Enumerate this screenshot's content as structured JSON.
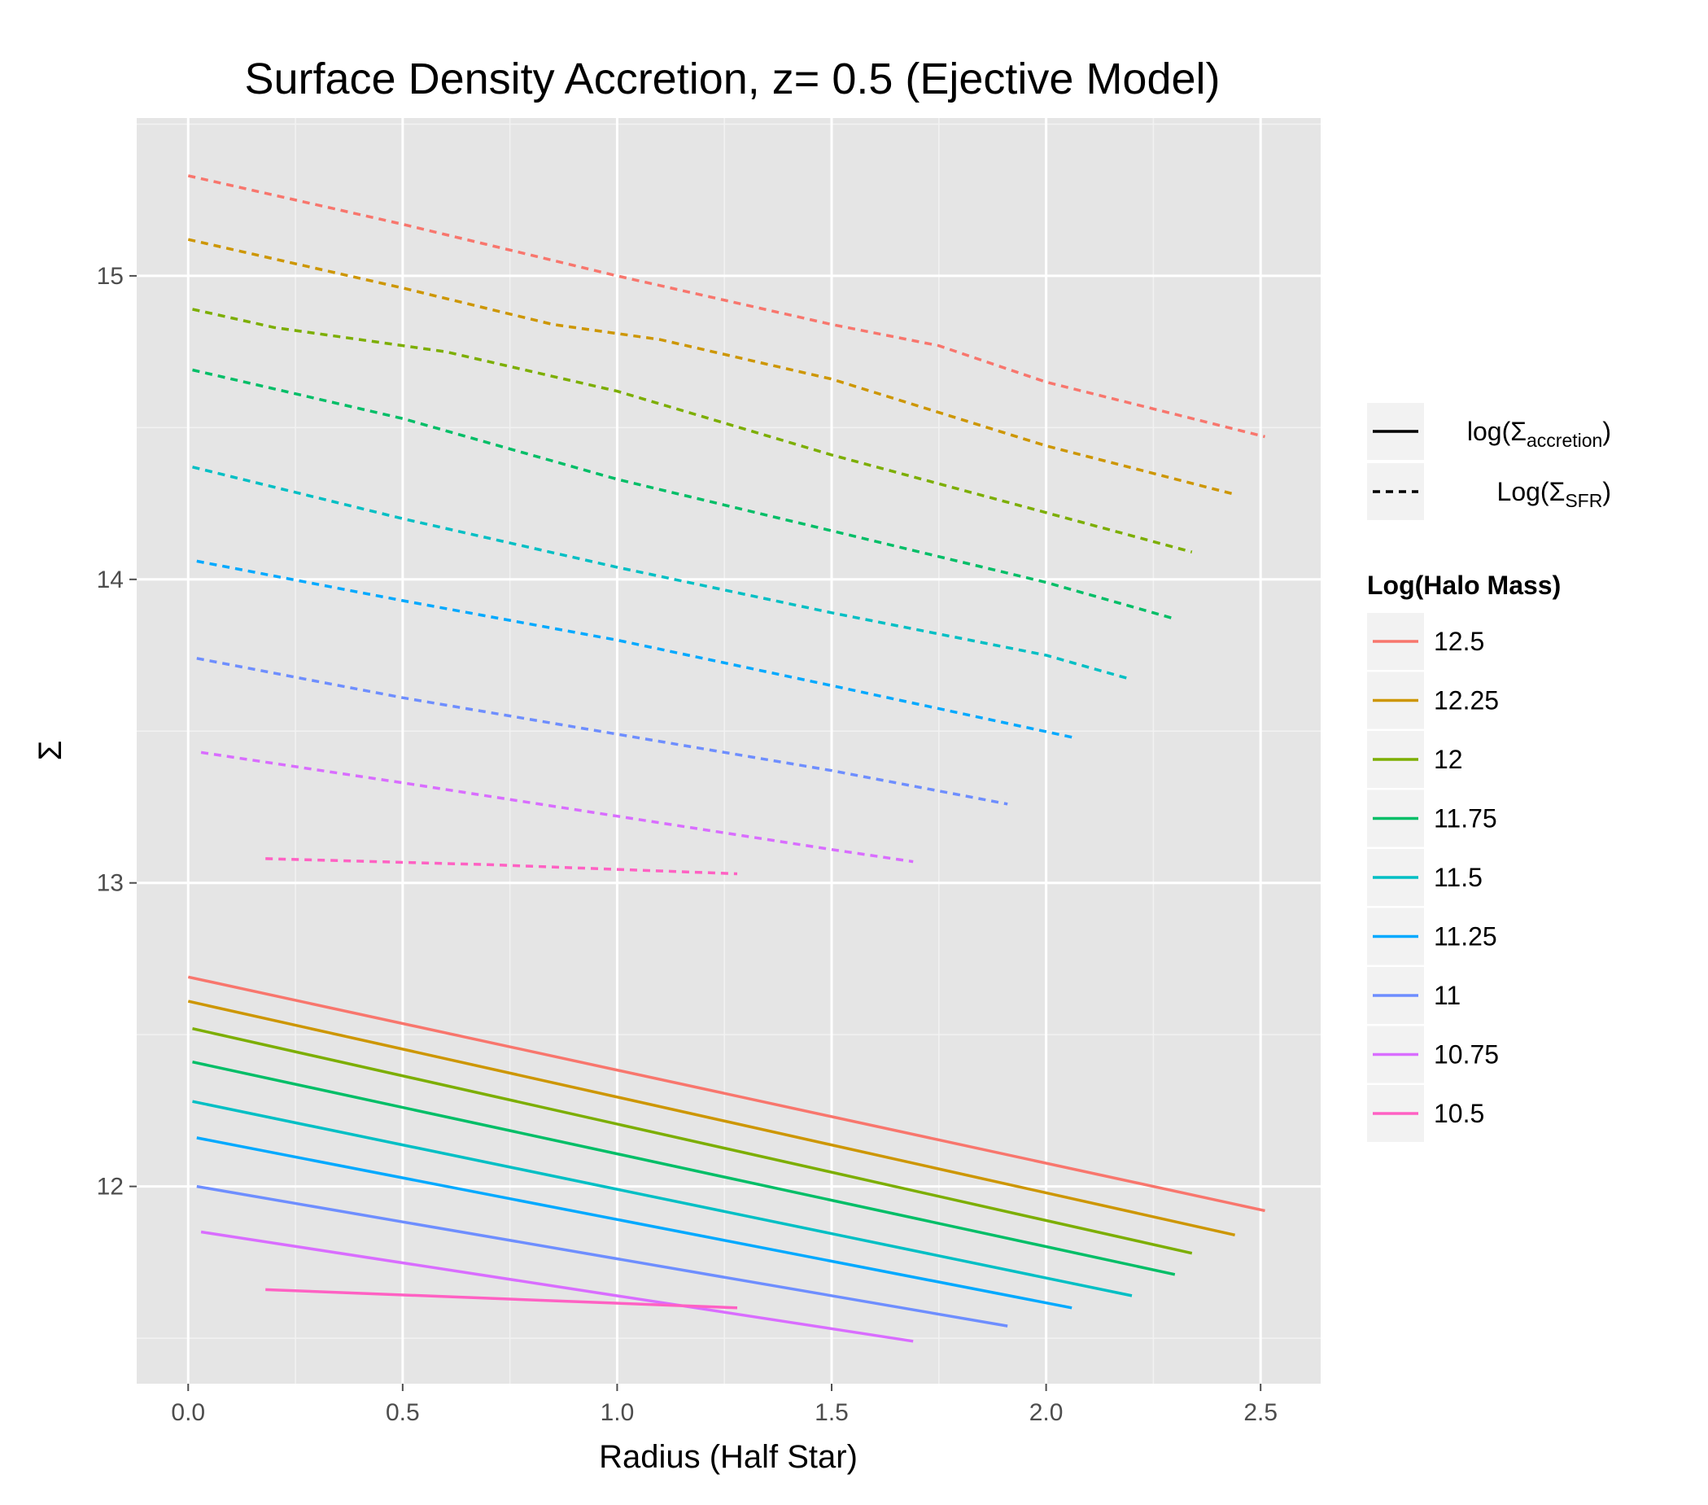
{
  "chart_data": {
    "type": "line",
    "title": "Surface Density Accretion, z= 0.5 (Ejective Model)",
    "xlabel": "Radius (Half Star)",
    "ylabel": "Σ",
    "xlim": [
      -0.12,
      2.64
    ],
    "ylim": [
      11.35,
      15.52
    ],
    "xticks": [
      0.0,
      0.5,
      1.0,
      1.5,
      2.0,
      2.5
    ],
    "xtick_labels": [
      "0.0",
      "0.5",
      "1.0",
      "1.5",
      "2.0",
      "2.5"
    ],
    "yticks": [
      12,
      13,
      14,
      15
    ],
    "ytick_labels": [
      "12",
      "13",
      "14",
      "15"
    ],
    "grid": true,
    "background": "#e5e5e5",
    "legend_position": "right",
    "linetype_legend": [
      {
        "linetype": "solid",
        "label_prefix": "log(Σ",
        "label_sub": "accretion",
        "label_suffix": ")"
      },
      {
        "linetype": "dashed",
        "label_prefix": "Log(Σ",
        "label_sub": "SFR",
        "label_suffix": ")"
      }
    ],
    "color_legend_title": "Log(Halo Mass)",
    "series": [
      {
        "name": "12.5",
        "color": "#F8766D",
        "accretion": [
          [
            0.0,
            12.69
          ],
          [
            2.51,
            11.92
          ]
        ],
        "sfr": [
          [
            0.0,
            15.33
          ],
          [
            0.5,
            15.17
          ],
          [
            1.0,
            15.0
          ],
          [
            1.5,
            14.84
          ],
          [
            1.75,
            14.77
          ],
          [
            2.0,
            14.65
          ],
          [
            2.51,
            14.47
          ]
        ]
      },
      {
        "name": "12.25",
        "color": "#CD9600",
        "accretion": [
          [
            0.0,
            12.61
          ],
          [
            2.44,
            11.84
          ]
        ],
        "sfr": [
          [
            0.0,
            15.12
          ],
          [
            0.5,
            14.96
          ],
          [
            0.85,
            14.84
          ],
          [
            1.1,
            14.79
          ],
          [
            1.5,
            14.66
          ],
          [
            2.0,
            14.44
          ],
          [
            2.44,
            14.28
          ]
        ]
      },
      {
        "name": "12",
        "color": "#7CAE00",
        "accretion": [
          [
            0.01,
            12.52
          ],
          [
            2.34,
            11.78
          ]
        ],
        "sfr": [
          [
            0.01,
            14.89
          ],
          [
            0.2,
            14.83
          ],
          [
            0.6,
            14.75
          ],
          [
            1.0,
            14.62
          ],
          [
            1.5,
            14.41
          ],
          [
            2.0,
            14.22
          ],
          [
            2.34,
            14.09
          ]
        ]
      },
      {
        "name": "11.75",
        "color": "#00BE67",
        "accretion": [
          [
            0.01,
            12.41
          ],
          [
            2.3,
            11.71
          ]
        ],
        "sfr": [
          [
            0.01,
            14.69
          ],
          [
            0.5,
            14.53
          ],
          [
            1.0,
            14.33
          ],
          [
            1.5,
            14.16
          ],
          [
            2.0,
            13.99
          ],
          [
            2.3,
            13.87
          ]
        ]
      },
      {
        "name": "11.5",
        "color": "#00BFC4",
        "accretion": [
          [
            0.01,
            12.28
          ],
          [
            2.2,
            11.64
          ]
        ],
        "sfr": [
          [
            0.01,
            14.37
          ],
          [
            0.5,
            14.2
          ],
          [
            1.0,
            14.04
          ],
          [
            1.5,
            13.89
          ],
          [
            2.0,
            13.75
          ],
          [
            2.2,
            13.67
          ]
        ]
      },
      {
        "name": "11.25",
        "color": "#00A9FF",
        "accretion": [
          [
            0.02,
            12.16
          ],
          [
            2.06,
            11.6
          ]
        ],
        "sfr": [
          [
            0.02,
            14.06
          ],
          [
            0.5,
            13.93
          ],
          [
            1.0,
            13.8
          ],
          [
            1.5,
            13.65
          ],
          [
            2.06,
            13.48
          ]
        ]
      },
      {
        "name": "11",
        "color": "#6E8EFF",
        "accretion": [
          [
            0.02,
            12.0
          ],
          [
            1.91,
            11.54
          ]
        ],
        "sfr": [
          [
            0.02,
            13.74
          ],
          [
            0.5,
            13.61
          ],
          [
            1.0,
            13.49
          ],
          [
            1.5,
            13.37
          ],
          [
            1.91,
            13.26
          ]
        ]
      },
      {
        "name": "10.75",
        "color": "#D96DFF",
        "accretion": [
          [
            0.03,
            11.85
          ],
          [
            1.69,
            11.49
          ]
        ],
        "sfr": [
          [
            0.03,
            13.43
          ],
          [
            0.5,
            13.33
          ],
          [
            1.0,
            13.22
          ],
          [
            1.5,
            13.11
          ],
          [
            1.69,
            13.07
          ]
        ]
      },
      {
        "name": "10.5",
        "color": "#FF61C3",
        "accretion": [
          [
            0.18,
            11.66
          ],
          [
            1.28,
            11.6
          ]
        ],
        "sfr": [
          [
            0.18,
            13.08
          ],
          [
            0.7,
            13.06
          ],
          [
            1.28,
            13.03
          ]
        ]
      }
    ]
  }
}
